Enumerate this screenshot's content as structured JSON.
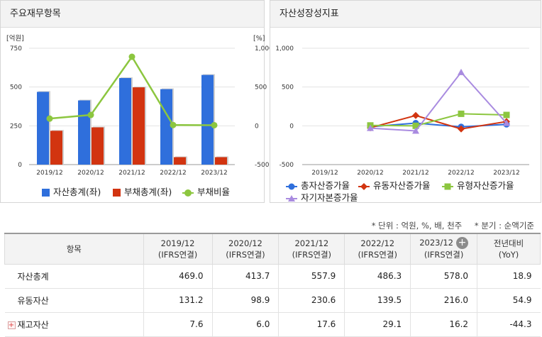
{
  "left_panel": {
    "title": "주요재무항목"
  },
  "right_panel": {
    "title": "자산성장성지표"
  },
  "notes": {
    "unit": "* 단위 : 억원, %, 배, 천주",
    "period": "* 분기 : 순액기준"
  },
  "table": {
    "headers": [
      {
        "line1": "항목",
        "line2": ""
      },
      {
        "line1": "2019/12",
        "line2": "(IFRS연결)"
      },
      {
        "line1": "2020/12",
        "line2": "(IFRS연결)"
      },
      {
        "line1": "2021/12",
        "line2": "(IFRS연결)"
      },
      {
        "line1": "2022/12",
        "line2": "(IFRS연결)"
      },
      {
        "line1": "2023/12",
        "line2": "(IFRS연결)"
      },
      {
        "line1": "전년대비",
        "line2": "(YoY)"
      }
    ],
    "expand_icon": "plus-circle-icon",
    "rows": [
      {
        "label": "자산총계",
        "values": [
          "469.0",
          "413.7",
          "557.9",
          "486.3",
          "578.0",
          "18.9"
        ]
      },
      {
        "label": "유동자산",
        "values": [
          "131.2",
          "98.9",
          "230.6",
          "139.5",
          "216.0",
          "54.9"
        ]
      },
      {
        "label": "재고자산",
        "values": [
          "7.6",
          "6.0",
          "17.6",
          "29.1",
          "16.2",
          "-44.3"
        ]
      }
    ],
    "colors": {
      "negative": "#e0341f"
    }
  },
  "chart_data": [
    {
      "type": "bar",
      "categories": [
        "2019/12",
        "2020/12",
        "2021/12",
        "2022/12",
        "2023/12"
      ],
      "ylabel": "[억원]",
      "y2label": "[%]",
      "ylim": [
        0,
        750
      ],
      "y2lim": [
        -500,
        1000
      ],
      "yticks": [
        "0",
        "250",
        "500",
        "750"
      ],
      "y2ticks": [
        "-500",
        "0",
        "500",
        "1,000"
      ],
      "series": [
        {
          "name": "자산총계(좌)",
          "type": "bar",
          "axis": "left",
          "color": "#2f6fdc",
          "values": [
            469.0,
            413.7,
            557.9,
            486.3,
            578.0
          ]
        },
        {
          "name": "부채총계(좌)",
          "type": "bar",
          "axis": "left",
          "color": "#d23410",
          "values": [
            218,
            240,
            498,
            48,
            48
          ]
        },
        {
          "name": "부채비율",
          "type": "line",
          "axis": "right",
          "color": "#8cc63f",
          "values": [
            93,
            140,
            890,
            10,
            8
          ]
        }
      ],
      "legend": "bottom",
      "grid": true
    },
    {
      "type": "line",
      "categories": [
        "2019/12",
        "2020/12",
        "2021/12",
        "2022/12",
        "2023/12"
      ],
      "ylim": [
        -500,
        1000
      ],
      "yticks": [
        "-500",
        "0",
        "500",
        "1,000"
      ],
      "series": [
        {
          "name": "총자산증가율",
          "color": "#2f6fdc",
          "marker": "circle",
          "values": [
            null,
            -12,
            35,
            -13,
            19
          ]
        },
        {
          "name": "유동자산증가율",
          "color": "#d23410",
          "marker": "diamond",
          "values": [
            null,
            -25,
            133,
            -40,
            55
          ]
        },
        {
          "name": "유형자산증가율",
          "color": "#8cc63f",
          "marker": "square",
          "values": [
            null,
            5,
            0,
            155,
            140
          ]
        },
        {
          "name": "자기자본증가율",
          "color": "#a98be0",
          "marker": "triangle",
          "values": [
            null,
            -30,
            -65,
            690,
            35
          ]
        }
      ],
      "legend": "bottom",
      "grid": true
    }
  ]
}
